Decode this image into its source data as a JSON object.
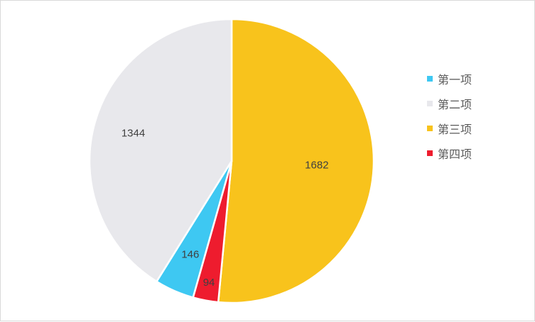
{
  "chart_data": {
    "type": "pie",
    "categories": [
      "第一项",
      "第二项",
      "第三项",
      "第四项"
    ],
    "values": [
      146,
      1344,
      1682,
      94
    ],
    "colors": [
      "#3ec8f2",
      "#e8e8ec",
      "#f8c31c",
      "#ee1c2e"
    ],
    "start_order": [
      "第三项",
      "第四项",
      "第一项",
      "第二项"
    ],
    "legend_position": "right",
    "title": ""
  }
}
